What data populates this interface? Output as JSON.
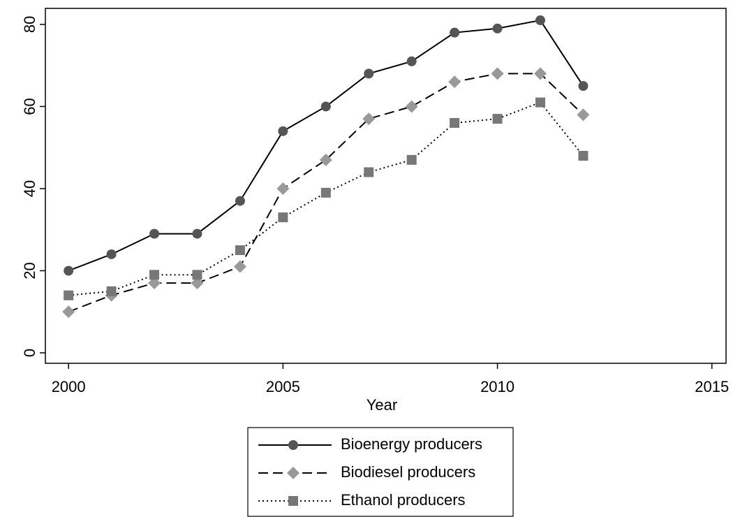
{
  "chart_data": {
    "type": "line",
    "x_label": "Year",
    "x": [
      2000,
      2001,
      2002,
      2003,
      2004,
      2005,
      2006,
      2007,
      2008,
      2009,
      2010,
      2011,
      2012
    ],
    "series": [
      {
        "name": "Bioenergy producers",
        "color": "#000000",
        "marker_color": "#555555",
        "marker": "circle",
        "line_style": "solid",
        "values": [
          20,
          24,
          29,
          29,
          37,
          54,
          60,
          68,
          71,
          78,
          79,
          81,
          65
        ]
      },
      {
        "name": "Biodiesel producers",
        "color": "#000000",
        "marker_color": "#999999",
        "marker": "diamond",
        "line_style": "dashed",
        "values": [
          10,
          14,
          17,
          17,
          21,
          40,
          47,
          57,
          60,
          66,
          68,
          68,
          58
        ]
      },
      {
        "name": "Ethanol producers",
        "color": "#000000",
        "marker_color": "#777777",
        "marker": "square",
        "line_style": "dotted",
        "values": [
          14,
          15,
          19,
          19,
          25,
          33,
          39,
          44,
          47,
          56,
          57,
          61,
          48
        ]
      }
    ],
    "xlim": [
      1999.46,
      2015.33
    ],
    "xticks": [
      2000,
      2005,
      2010,
      2015
    ],
    "ylim": [
      -2.55,
      83.9
    ],
    "yticks": [
      0,
      20,
      40,
      60,
      80
    ],
    "grid": false,
    "legend": "bottom"
  }
}
